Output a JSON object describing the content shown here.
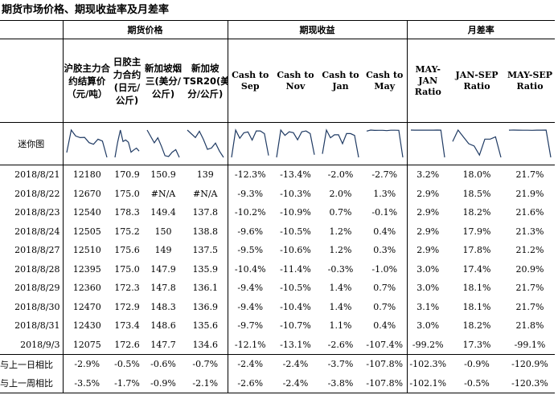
{
  "title": "期货市场价格、期现收益率及月差率",
  "groups": {
    "futures": "期货价格",
    "basis": "期现收益",
    "spread": "月差率"
  },
  "columns": [
    "沪胶主力合约结算价（元/吨）",
    "日胶主力合约(日元/公斤)",
    "新加坡烟三(美分/公斤)",
    "新加坡TSR20(美分/公斤)",
    "Cash to Sep",
    "Cash to Nov",
    "Cash to Jan",
    "Cash to May",
    "MAY-JAN Ratio",
    "JAN-SEP Ratio",
    "MAY-SEP Ratio"
  ],
  "sparkline_label": "迷你图",
  "sparklines": [
    [
      12180,
      12670,
      12540,
      12505,
      12510,
      12395,
      12360,
      12470,
      12430,
      12075
    ],
    [
      170.9,
      175.0,
      178.3,
      175.2,
      175.6,
      175.0,
      172.3,
      172.9,
      173.4,
      172.6
    ],
    [
      150.9,
      null,
      149.4,
      150,
      149,
      147.9,
      147.8,
      148.3,
      148.6,
      147.7
    ],
    [
      139,
      null,
      137.8,
      138.8,
      137.5,
      135.9,
      136.1,
      136.9,
      135.6,
      134.6
    ],
    [
      -12.3,
      -9.3,
      -10.2,
      -9.6,
      -9.5,
      -10.4,
      -9.4,
      -9.4,
      -9.7,
      -12.1
    ],
    [
      -13.4,
      -10.3,
      -10.9,
      -10.5,
      -10.6,
      -11.4,
      -10.5,
      -10.4,
      -10.7,
      -13.1
    ],
    [
      -2.0,
      2.0,
      0.7,
      1.2,
      1.2,
      -0.3,
      1.4,
      1.4,
      1.1,
      -2.6
    ],
    [
      -2.7,
      1.3,
      -0.1,
      0.4,
      0.3,
      -1.0,
      0.7,
      0.7,
      0.4,
      -107.4
    ],
    [
      3.2,
      2.9,
      2.9,
      2.9,
      2.9,
      3.0,
      3.0,
      3.1,
      3.0,
      -99.2
    ],
    [
      18.0,
      18.5,
      18.2,
      17.9,
      17.8,
      17.4,
      18.1,
      18.1,
      18.2,
      17.3
    ],
    [
      21.7,
      21.9,
      21.6,
      21.3,
      21.2,
      20.9,
      21.7,
      21.7,
      21.8,
      -99.1
    ]
  ],
  "rows": [
    {
      "date": "2018/8/21",
      "values": [
        "12180",
        "170.9",
        "150.9",
        "139",
        "-12.3%",
        "-13.4%",
        "-2.0%",
        "-2.7%",
        "3.2%",
        "18.0%",
        "21.7%"
      ]
    },
    {
      "date": "2018/8/22",
      "values": [
        "12670",
        "175.0",
        "#N/A",
        "#N/A",
        "-9.3%",
        "-10.3%",
        "2.0%",
        "1.3%",
        "2.9%",
        "18.5%",
        "21.9%"
      ]
    },
    {
      "date": "2018/8/23",
      "values": [
        "12540",
        "178.3",
        "149.4",
        "137.8",
        "-10.2%",
        "-10.9%",
        "0.7%",
        "-0.1%",
        "2.9%",
        "18.2%",
        "21.6%"
      ]
    },
    {
      "date": "2018/8/24",
      "values": [
        "12505",
        "175.2",
        "150",
        "138.8",
        "-9.6%",
        "-10.5%",
        "1.2%",
        "0.4%",
        "2.9%",
        "17.9%",
        "21.3%"
      ]
    },
    {
      "date": "2018/8/27",
      "values": [
        "12510",
        "175.6",
        "149",
        "137.5",
        "-9.5%",
        "-10.6%",
        "1.2%",
        "0.3%",
        "2.9%",
        "17.8%",
        "21.2%"
      ]
    },
    {
      "date": "2018/8/28",
      "values": [
        "12395",
        "175.0",
        "147.9",
        "135.9",
        "-10.4%",
        "-11.4%",
        "-0.3%",
        "-1.0%",
        "3.0%",
        "17.4%",
        "20.9%"
      ]
    },
    {
      "date": "2018/8/29",
      "values": [
        "12360",
        "172.3",
        "147.8",
        "136.1",
        "-9.4%",
        "-10.5%",
        "1.4%",
        "0.7%",
        "3.0%",
        "18.1%",
        "21.7%"
      ]
    },
    {
      "date": "2018/8/30",
      "values": [
        "12470",
        "172.9",
        "148.3",
        "136.9",
        "-9.4%",
        "-10.4%",
        "1.4%",
        "0.7%",
        "3.1%",
        "18.1%",
        "21.7%"
      ]
    },
    {
      "date": "2018/8/31",
      "values": [
        "12430",
        "173.4",
        "148.6",
        "135.6",
        "-9.7%",
        "-10.7%",
        "1.1%",
        "0.4%",
        "3.0%",
        "18.2%",
        "21.8%"
      ]
    },
    {
      "date": "2018/9/3",
      "values": [
        "12075",
        "172.6",
        "147.7",
        "134.6",
        "-12.1%",
        "-13.1%",
        "-2.6%",
        "-107.4%",
        "-99.2%",
        "17.3%",
        "-99.1%"
      ]
    }
  ],
  "changes": [
    {
      "label": "与上一日相比",
      "values": [
        "-2.9%",
        "-0.5%",
        "-0.6%",
        "-0.7%",
        "-2.4%",
        "-2.4%",
        "-3.7%",
        "-107.8%",
        "-102.3%",
        "-0.9%",
        "-120.9%"
      ]
    },
    {
      "label": "与上一周相比",
      "values": [
        "-3.5%",
        "-1.7%",
        "-0.9%",
        "-2.1%",
        "-2.6%",
        "-2.4%",
        "-3.8%",
        "-107.8%",
        "-102.1%",
        "-0.5%",
        "-120.3%"
      ]
    }
  ],
  "colors": {
    "sparkline": "#1f3a63",
    "border": "#000000"
  }
}
